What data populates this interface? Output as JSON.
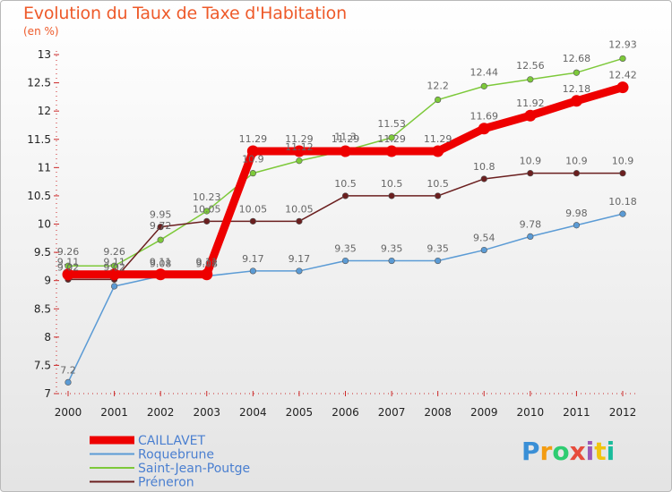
{
  "chart_data": {
    "type": "line",
    "title": "Evolution du Taux de Taxe d'Habitation",
    "subtitle": "(en %)",
    "x": [
      "2000",
      "2001",
      "2002",
      "2003",
      "2004",
      "2005",
      "2006",
      "2007",
      "2008",
      "2009",
      "2010",
      "2011",
      "2012"
    ],
    "ylim": [
      7,
      13
    ],
    "yticks": [
      "7",
      "7.5",
      "8",
      "8.5",
      "9",
      "9.5",
      "10",
      "10.5",
      "11",
      "11.5",
      "12",
      "12.5",
      "13"
    ],
    "grid": false,
    "legend_position": "bottom-left",
    "series": [
      {
        "name": "CAILLAVET",
        "color": "#ee0000",
        "values": [
          9.11,
          9.11,
          9.11,
          9.11,
          11.29,
          11.29,
          11.29,
          11.29,
          11.29,
          11.69,
          11.92,
          12.18,
          12.42
        ],
        "labels": [
          "9.11",
          "9.11",
          "9.11",
          "9.11",
          "11.29",
          "11.29",
          "11.29",
          "11.29",
          "11.29",
          "11.69",
          "11.92",
          "12.18",
          "12.42"
        ]
      },
      {
        "name": "Roquebrune",
        "color": "#5b9bd5",
        "values": [
          7.2,
          8.9,
          9.08,
          9.08,
          9.17,
          9.17,
          9.35,
          9.35,
          9.35,
          9.54,
          9.78,
          9.98,
          10.18
        ],
        "labels": [
          "7.2",
          "",
          "9.08",
          "9.08",
          "9.17",
          "9.17",
          "9.35",
          "9.35",
          "9.35",
          "9.54",
          "9.78",
          "9.98",
          "10.18"
        ]
      },
      {
        "name": "Saint-Jean-Poutge",
        "color": "#7dc93a",
        "values": [
          9.26,
          9.26,
          9.72,
          10.23,
          10.9,
          11.12,
          11.3,
          11.53,
          12.2,
          12.44,
          12.56,
          12.68,
          12.93
        ],
        "labels": [
          "9.26",
          "9.26",
          "9.72",
          "10.23",
          "10.9",
          "11.12",
          "11.3",
          "11.53",
          "12.2",
          "12.44",
          "12.56",
          "12.68",
          "12.93"
        ]
      },
      {
        "name": "Préneron",
        "color": "#6b1f1f",
        "values": [
          9.02,
          9.02,
          9.95,
          10.05,
          10.05,
          10.05,
          10.5,
          10.5,
          10.5,
          10.8,
          10.9,
          10.9,
          10.9
        ],
        "labels": [
          "9.02",
          "9.02",
          "9.95",
          "10.05",
          "10.05",
          "10.05",
          "10.5",
          "10.5",
          "10.5",
          "10.8",
          "10.9",
          "10.9",
          "10.9"
        ]
      }
    ]
  },
  "logo": {
    "text": "Proxiti",
    "letters": [
      "P",
      "r",
      "o",
      "x",
      "i",
      "t",
      "i"
    ],
    "colors": [
      "#3a8fd6",
      "#f39c12",
      "#2ecc71",
      "#e74c3c",
      "#9b59b6",
      "#f1c40f",
      "#1abc9c"
    ]
  }
}
